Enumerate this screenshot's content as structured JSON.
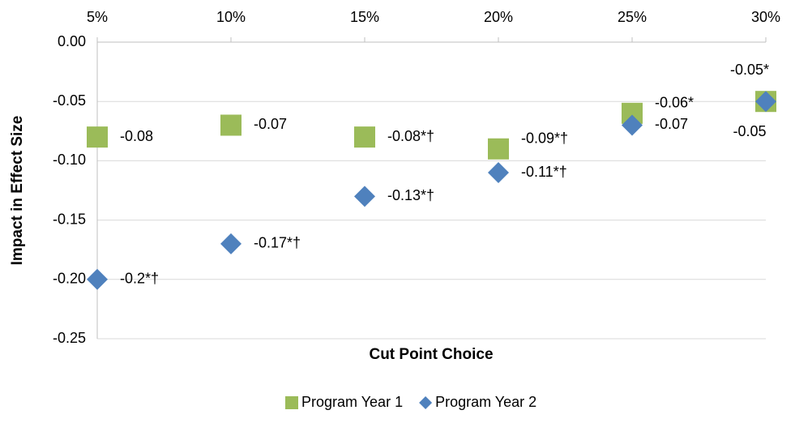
{
  "chart_data": {
    "type": "scatter",
    "x_label": "Cut Point Choice",
    "y_label": "Impact in Effect Size",
    "categories": [
      "5%",
      "10%",
      "15%",
      "20%",
      "25%",
      "30%"
    ],
    "ylim": [
      -0.25,
      0
    ],
    "yticks": [
      {
        "value": 0,
        "label": "0.00"
      },
      -0.05,
      {
        "value": -0.1,
        "label": "-0.10"
      },
      -0.15,
      {
        "value": -0.2,
        "label": "-0.20"
      },
      -0.25
    ],
    "grid": true,
    "legend": "bottom",
    "series": [
      {
        "name": "Program Year 1",
        "color": "#9bbb59",
        "marker": "square",
        "values": [
          -0.08,
          -0.07,
          -0.08,
          -0.09,
          -0.06,
          -0.05
        ],
        "value_labels": [
          "-0.08",
          "-0.07",
          "-0.08*†",
          "-0.09*†",
          "-0.06*",
          "-0.05*"
        ]
      },
      {
        "name": "Program Year 2",
        "color": "#4f81bd",
        "marker": "diamond",
        "values": [
          -0.2,
          -0.17,
          -0.13,
          -0.11,
          -0.07,
          -0.05
        ],
        "value_labels": [
          "-0.2*†",
          "-0.17*†",
          "-0.13*†",
          "-0.11*†",
          "-0.07",
          "-0.05"
        ]
      }
    ]
  }
}
